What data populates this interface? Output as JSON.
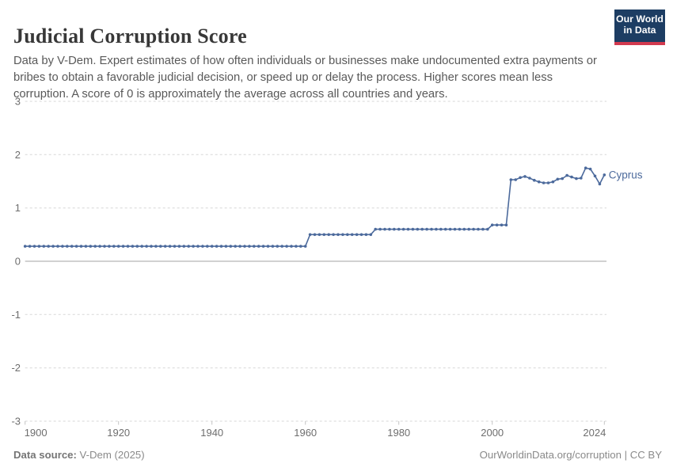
{
  "header": {
    "title": "Judicial Corruption Score",
    "subtitle": "Data by V-Dem. Expert estimates of how often individuals or businesses make undocumented extra payments or bribes to obtain a favorable judicial decision, or speed up or delay the process. Higher scores mean less corruption. A score of 0 is approximately the average across all countries and years.",
    "logo": {
      "line1": "Our World",
      "line2": "in Data",
      "bg": "#1d3d63",
      "accent": "#d23a4f"
    }
  },
  "footer": {
    "source_label": "Data source:",
    "source_value": " V-Dem (2025)",
    "link": "OurWorldinData.org/corruption | CC BY"
  },
  "colors": {
    "series": "#4c6a9c",
    "gridline": "#d7d7d7",
    "zero_line": "#a3a3a3",
    "tick_label": "#6e6e6e"
  },
  "chart_data": {
    "type": "line",
    "title": "Judicial Corruption Score",
    "xlabel": "",
    "ylabel": "",
    "xlim": [
      1900,
      2024
    ],
    "ylim": [
      -3,
      3
    ],
    "x_ticks": [
      1900,
      1920,
      1940,
      1960,
      1980,
      2000,
      2024
    ],
    "y_ticks": [
      3,
      2,
      1,
      0,
      -1,
      -2,
      -3
    ],
    "grid": "horizontal dashed, solid zero line",
    "legend_position": "end-of-line label",
    "end_label": "Cyprus",
    "markers": true,
    "series": [
      {
        "name": "Cyprus",
        "color": "#4c6a9c",
        "points": [
          [
            1900,
            0.28
          ],
          [
            1901,
            0.28
          ],
          [
            1902,
            0.28
          ],
          [
            1903,
            0.28
          ],
          [
            1904,
            0.28
          ],
          [
            1905,
            0.28
          ],
          [
            1906,
            0.28
          ],
          [
            1907,
            0.28
          ],
          [
            1908,
            0.28
          ],
          [
            1909,
            0.28
          ],
          [
            1910,
            0.28
          ],
          [
            1911,
            0.28
          ],
          [
            1912,
            0.28
          ],
          [
            1913,
            0.28
          ],
          [
            1914,
            0.28
          ],
          [
            1915,
            0.28
          ],
          [
            1916,
            0.28
          ],
          [
            1917,
            0.28
          ],
          [
            1918,
            0.28
          ],
          [
            1919,
            0.28
          ],
          [
            1920,
            0.28
          ],
          [
            1921,
            0.28
          ],
          [
            1922,
            0.28
          ],
          [
            1923,
            0.28
          ],
          [
            1924,
            0.28
          ],
          [
            1925,
            0.28
          ],
          [
            1926,
            0.28
          ],
          [
            1927,
            0.28
          ],
          [
            1928,
            0.28
          ],
          [
            1929,
            0.28
          ],
          [
            1930,
            0.28
          ],
          [
            1931,
            0.28
          ],
          [
            1932,
            0.28
          ],
          [
            1933,
            0.28
          ],
          [
            1934,
            0.28
          ],
          [
            1935,
            0.28
          ],
          [
            1936,
            0.28
          ],
          [
            1937,
            0.28
          ],
          [
            1938,
            0.28
          ],
          [
            1939,
            0.28
          ],
          [
            1940,
            0.28
          ],
          [
            1941,
            0.28
          ],
          [
            1942,
            0.28
          ],
          [
            1943,
            0.28
          ],
          [
            1944,
            0.28
          ],
          [
            1945,
            0.28
          ],
          [
            1946,
            0.28
          ],
          [
            1947,
            0.28
          ],
          [
            1948,
            0.28
          ],
          [
            1949,
            0.28
          ],
          [
            1950,
            0.28
          ],
          [
            1951,
            0.28
          ],
          [
            1952,
            0.28
          ],
          [
            1953,
            0.28
          ],
          [
            1954,
            0.28
          ],
          [
            1955,
            0.28
          ],
          [
            1956,
            0.28
          ],
          [
            1957,
            0.28
          ],
          [
            1958,
            0.28
          ],
          [
            1959,
            0.28
          ],
          [
            1960,
            0.28
          ],
          [
            1961,
            0.5
          ],
          [
            1962,
            0.5
          ],
          [
            1963,
            0.5
          ],
          [
            1964,
            0.5
          ],
          [
            1965,
            0.5
          ],
          [
            1966,
            0.5
          ],
          [
            1967,
            0.5
          ],
          [
            1968,
            0.5
          ],
          [
            1969,
            0.5
          ],
          [
            1970,
            0.5
          ],
          [
            1971,
            0.5
          ],
          [
            1972,
            0.5
          ],
          [
            1973,
            0.5
          ],
          [
            1974,
            0.5
          ],
          [
            1975,
            0.6
          ],
          [
            1976,
            0.6
          ],
          [
            1977,
            0.6
          ],
          [
            1978,
            0.6
          ],
          [
            1979,
            0.6
          ],
          [
            1980,
            0.6
          ],
          [
            1981,
            0.6
          ],
          [
            1982,
            0.6
          ],
          [
            1983,
            0.6
          ],
          [
            1984,
            0.6
          ],
          [
            1985,
            0.6
          ],
          [
            1986,
            0.6
          ],
          [
            1987,
            0.6
          ],
          [
            1988,
            0.6
          ],
          [
            1989,
            0.6
          ],
          [
            1990,
            0.6
          ],
          [
            1991,
            0.6
          ],
          [
            1992,
            0.6
          ],
          [
            1993,
            0.6
          ],
          [
            1994,
            0.6
          ],
          [
            1995,
            0.6
          ],
          [
            1996,
            0.6
          ],
          [
            1997,
            0.6
          ],
          [
            1998,
            0.6
          ],
          [
            1999,
            0.6
          ],
          [
            2000,
            0.68
          ],
          [
            2001,
            0.68
          ],
          [
            2002,
            0.68
          ],
          [
            2003,
            0.68
          ],
          [
            2004,
            1.53
          ],
          [
            2005,
            1.53
          ],
          [
            2006,
            1.57
          ],
          [
            2007,
            1.59
          ],
          [
            2008,
            1.56
          ],
          [
            2009,
            1.52
          ],
          [
            2010,
            1.49
          ],
          [
            2011,
            1.47
          ],
          [
            2012,
            1.47
          ],
          [
            2013,
            1.49
          ],
          [
            2014,
            1.54
          ],
          [
            2015,
            1.55
          ],
          [
            2016,
            1.61
          ],
          [
            2017,
            1.58
          ],
          [
            2018,
            1.55
          ],
          [
            2019,
            1.56
          ],
          [
            2020,
            1.75
          ],
          [
            2021,
            1.73
          ],
          [
            2022,
            1.6
          ],
          [
            2023,
            1.45
          ],
          [
            2024,
            1.62
          ]
        ]
      }
    ]
  }
}
